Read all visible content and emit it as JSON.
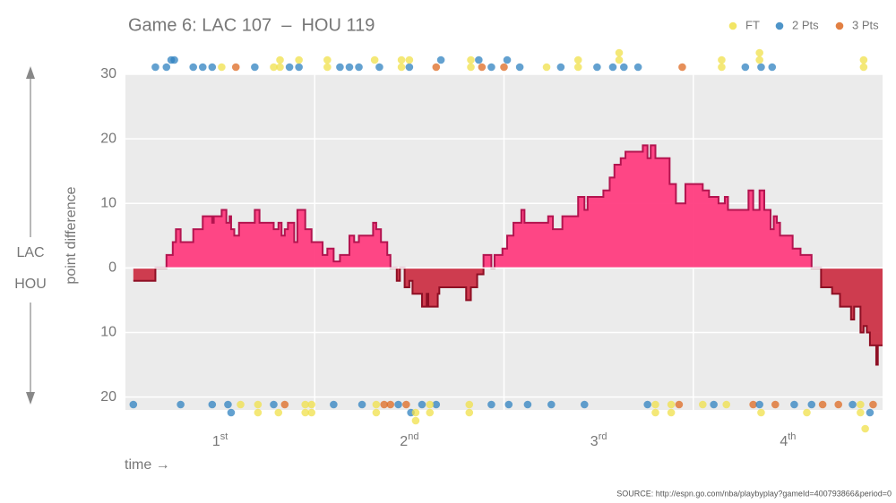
{
  "chart_data": {
    "type": "step-area",
    "title": "Game 6: LAC 107  –  HOU 119",
    "ylabel": "point difference",
    "xlabel": "time →",
    "team_top": "LAC",
    "team_bottom": "HOU",
    "source": "SOURCE: http://espn.go.com/nba/playbyplay?gameId=400793866&period=0",
    "xlim": [
      0,
      48
    ],
    "ylim": [
      -22,
      30
    ],
    "yticks": [
      30,
      20,
      10,
      0,
      {
        "value": -10,
        "label": "10"
      },
      {
        "value": -20,
        "label": "20"
      }
    ],
    "xticks": [
      {
        "value": 6,
        "label": "1st"
      },
      {
        "value": 18,
        "label": "2nd"
      },
      {
        "value": 30,
        "label": "3rd"
      },
      {
        "value": 42,
        "label": "4th"
      }
    ],
    "xgrid": [
      12,
      24,
      36
    ],
    "grid": true,
    "positive_color": "#ff3d7f",
    "negative_color": "#cc3347",
    "positive_stroke": "#b3144f",
    "negative_stroke": "#8e0f24",
    "x": [
      0.5,
      1.9,
      2.6,
      3.0,
      3.2,
      3.5,
      4.3,
      4.9,
      5.5,
      5.6,
      6.1,
      6.4,
      6.6,
      6.7,
      6.9,
      7.2,
      8.2,
      8.5,
      9.4,
      9.7,
      9.9,
      10.1,
      10.3,
      10.7,
      10.9,
      11.4,
      11.8,
      12.5,
      12.8,
      13.2,
      13.6,
      14.2,
      14.5,
      14.8,
      15.7,
      15.9,
      16.2,
      16.6,
      16.8,
      17.2,
      17.4,
      17.7,
      18.0,
      18.2,
      18.8,
      19.1,
      19.2,
      19.8,
      19.9,
      21.6,
      21.9,
      22.3,
      22.7,
      23.2,
      23.4,
      23.9,
      24.2,
      24.6,
      25.1,
      25.3,
      26.8,
      27.1,
      27.7,
      28.7,
      29.1,
      29.3,
      30.3,
      30.7,
      31.0,
      31.4,
      31.7,
      32.8,
      33.1,
      33.3,
      33.6,
      34.5,
      34.9,
      35.5,
      36.6,
      37.0,
      37.6,
      38.0,
      38.2,
      39.5,
      39.8,
      40.2,
      40.5,
      40.9,
      41.1,
      41.3,
      41.5,
      42.3,
      42.8,
      43.5,
      44.1,
      44.8,
      45.3,
      46.0,
      46.2,
      46.6,
      46.8,
      47.0,
      47.2,
      47.6,
      47.7
    ],
    "values": [
      -2,
      0,
      2,
      4,
      6,
      4,
      6,
      8,
      7,
      8,
      9,
      7,
      8,
      6,
      5,
      7,
      9,
      7,
      6,
      7,
      5,
      6,
      7,
      4,
      9,
      6,
      4,
      2,
      3,
      1,
      2,
      5,
      4,
      5,
      7,
      6,
      4,
      2,
      0,
      -2,
      0,
      -3,
      -2,
      -4,
      -6,
      -4,
      -6,
      -4,
      -3,
      -5,
      -3,
      -1,
      2,
      0,
      2,
      3,
      5,
      7,
      9,
      7,
      8,
      6,
      8,
      11,
      9,
      11,
      12,
      14,
      16,
      17,
      18,
      19,
      17,
      19,
      17,
      13,
      10,
      13,
      12,
      11,
      10,
      11,
      9,
      12,
      9,
      12,
      9,
      6,
      8,
      7,
      5,
      3,
      2,
      0,
      -3,
      -4,
      -6,
      -8,
      -6,
      -10,
      -9,
      -10,
      -12,
      -15,
      -12
    ],
    "series": [
      {
        "name": "FT",
        "color": "#f0e04a",
        "top": [
          6.1,
          9.4,
          9.8,
          9.8,
          11.0,
          12.8,
          12.8,
          15.8,
          17.5,
          17.5,
          18.0,
          21.9,
          21.9,
          26.7,
          28.7,
          28.7,
          31.3,
          31.3,
          37.8,
          37.8,
          40.2,
          40.2,
          46.8,
          46.8
        ],
        "bottom": [
          7.3,
          8.4,
          8.4,
          9.7,
          11.4,
          11.4,
          11.8,
          11.8,
          15.9,
          15.9,
          18.4,
          18.4,
          19.3,
          19.3,
          21.8,
          21.8,
          33.6,
          33.6,
          34.6,
          34.6,
          36.6,
          38.1,
          40.3,
          43.2,
          46.6,
          46.6,
          46.9
        ]
      },
      {
        "name": "2 Pts",
        "color": "#2f82c0",
        "top": [
          1.9,
          2.6,
          2.9,
          3.1,
          4.3,
          4.9,
          5.5,
          8.2,
          10.4,
          11.0,
          13.6,
          14.2,
          14.8,
          16.1,
          18.0,
          20.0,
          22.4,
          23.2,
          24.2,
          25.0,
          27.6,
          29.9,
          30.9,
          31.6,
          32.5,
          39.3,
          40.3,
          41.0
        ],
        "bottom": [
          0.5,
          3.5,
          5.5,
          6.5,
          6.7,
          9.4,
          13.2,
          15.0,
          17.3,
          18.1,
          18.8,
          19.7,
          23.2,
          24.3,
          25.5,
          27.0,
          29.1,
          33.1,
          37.3,
          40.2,
          42.4,
          43.5,
          46.1,
          47.2
        ]
      },
      {
        "name": "3 Pts",
        "color": "#dd6a22",
        "top": [
          7.0,
          19.7,
          22.6,
          24.0,
          35.3
        ],
        "bottom": [
          10.1,
          16.4,
          16.8,
          17.8,
          35.1,
          39.8,
          41.2,
          44.2,
          45.2,
          47.4
        ]
      }
    ]
  }
}
